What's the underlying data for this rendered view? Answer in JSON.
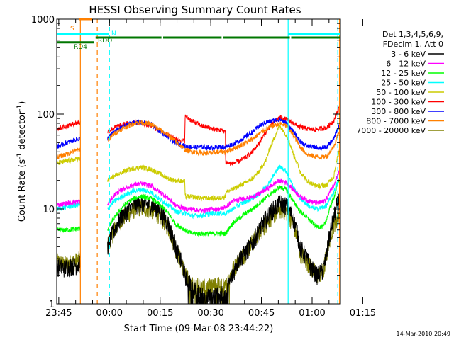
{
  "chart_data": {
    "type": "line",
    "title": "HESSI Observing Summary Count Rates",
    "xlabel": "Start Time (09-Mar-08 23:44:22)",
    "ylabel_main": "Count Rate (s",
    "ylabel_sup1": "-1",
    "ylabel_mid": " detector",
    "ylabel_sup2": "-1",
    "ylabel_end": ")",
    "y_scale": "log",
    "ylim": [
      1,
      1000
    ],
    "x_unit": "minutes since 23:44:22",
    "xlim": [
      0,
      84
    ],
    "x_ticks": [
      {
        "label": "23:45",
        "value": 0.6
      },
      {
        "label": "00:00",
        "value": 15.6
      },
      {
        "label": "00:15",
        "value": 30.6
      },
      {
        "label": "00:30",
        "value": 45.6
      },
      {
        "label": "00:45",
        "value": 60.6
      },
      {
        "label": "01:00",
        "value": 75.6
      },
      {
        "label": "01:15",
        "value": 90.6
      }
    ],
    "y_ticks": [
      {
        "label": "1",
        "value": 1
      },
      {
        "label": "10",
        "value": 10
      },
      {
        "label": "100",
        "value": 100
      },
      {
        "label": "1000",
        "value": 1000
      }
    ],
    "legend_header": [
      "Det 1,3,4,5,6,9,",
      "FDecim 1, Att 0"
    ],
    "legend_position": "right",
    "timestamp": "14-Mar-2010 20:49",
    "gaps": [
      [
        7,
        15
      ]
    ],
    "series": [
      {
        "name": "3 - 6 keV",
        "color": "#000000",
        "x": [
          0,
          2,
          4,
          6.5,
          15,
          17,
          20,
          23,
          25,
          28,
          30,
          33,
          35,
          38,
          40,
          43,
          46,
          48,
          50,
          52,
          54,
          56,
          58,
          60,
          63,
          66,
          68,
          70,
          72,
          75,
          77,
          79,
          80,
          82,
          84
        ],
        "y": [
          2.5,
          2.4,
          2.5,
          2.6,
          4,
          6,
          9,
          11,
          11.5,
          11,
          10,
          7,
          4,
          2,
          1.5,
          1.2,
          1.2,
          1.3,
          1.2,
          2,
          3,
          3.5,
          4.5,
          6,
          9,
          11.5,
          11,
          8,
          4,
          2.5,
          2,
          2.3,
          3.5,
          8,
          14
        ]
      },
      {
        "name": "6 - 12 keV",
        "color": "#ff00ff",
        "x": [
          0,
          3,
          6.5,
          15,
          17,
          20,
          23,
          25,
          28,
          30,
          33,
          35,
          38,
          40,
          43,
          46,
          48,
          50,
          52,
          54,
          56,
          58,
          60,
          63,
          66,
          68,
          70,
          72,
          75,
          77,
          79,
          80,
          82,
          84
        ],
        "y": [
          11,
          11.5,
          12,
          11,
          14,
          16.5,
          18,
          18.5,
          17.5,
          15.5,
          13,
          11,
          10,
          10,
          9.5,
          10,
          10,
          10.5,
          12,
          12.5,
          13,
          13.5,
          14.5,
          17,
          20,
          19,
          16,
          13.5,
          12,
          11.5,
          12,
          13,
          18,
          26
        ]
      },
      {
        "name": "12 - 25 keV",
        "color": "#00ff00",
        "x": [
          0,
          3,
          6.5,
          15,
          17,
          20,
          23,
          25,
          28,
          30,
          33,
          35,
          38,
          40,
          43,
          46,
          48,
          50,
          52,
          54,
          56,
          58,
          60,
          63,
          66,
          68,
          70,
          72,
          75,
          77,
          79,
          80,
          82,
          84
        ],
        "y": [
          6,
          6,
          6.2,
          6,
          8,
          11,
          13,
          13.5,
          13,
          11.5,
          9,
          7,
          6,
          5.5,
          5.5,
          5.5,
          5.5,
          5.5,
          7,
          8,
          9,
          10,
          11.5,
          14,
          17,
          16,
          12,
          9.5,
          7.5,
          6.5,
          6.5,
          8,
          13,
          22
        ]
      },
      {
        "name": "25 - 50 keV",
        "color": "#00ffff",
        "x": [
          0,
          3,
          6.5,
          15,
          17,
          20,
          23,
          25,
          28,
          30,
          33,
          35,
          38,
          40,
          43,
          46,
          48,
          50,
          52,
          54,
          56,
          58,
          60,
          63,
          66,
          68,
          70,
          72,
          75,
          77,
          79,
          80,
          82,
          84
        ],
        "y": [
          10,
          10.5,
          11,
          10,
          12,
          14,
          15.5,
          16,
          15,
          13,
          11,
          9.5,
          9,
          8.5,
          8.5,
          9,
          9,
          9,
          10,
          11,
          12,
          13,
          14.5,
          19,
          28,
          25,
          17,
          13,
          10.5,
          10,
          10.5,
          11,
          15,
          22
        ]
      },
      {
        "name": "50 - 100 keV",
        "color": "#cccc00",
        "x": [
          0,
          3,
          6.5,
          15,
          17,
          20,
          23,
          25,
          28,
          30,
          33,
          35,
          37.9,
          38,
          40,
          43,
          46,
          48,
          49.9,
          50,
          52,
          54,
          56,
          58,
          60,
          62,
          64,
          66,
          68,
          70,
          72,
          74,
          76,
          78,
          80,
          82,
          84
        ],
        "y": [
          30,
          32,
          34,
          20,
          22,
          25,
          27,
          27.5,
          26,
          24,
          21,
          20,
          19.5,
          13.5,
          13.5,
          13,
          13,
          13,
          13.5,
          15,
          16,
          17.5,
          19,
          21,
          25,
          33,
          52,
          75,
          60,
          38,
          25,
          20,
          18,
          17.5,
          18,
          22,
          45
        ]
      },
      {
        "name": "100 - 300 keV",
        "color": "#ff0000",
        "x": [
          0,
          3,
          6.5,
          15,
          17,
          20,
          23,
          25,
          28,
          30,
          33,
          35,
          37.9,
          38,
          40,
          43,
          46,
          48,
          49.9,
          50,
          52,
          54,
          56,
          58,
          60,
          62,
          64,
          66,
          68,
          70,
          72,
          74,
          76,
          78,
          80,
          82,
          84
        ],
        "y": [
          70,
          75,
          82,
          65,
          72,
          78,
          82,
          80,
          75,
          68,
          60,
          55,
          52,
          95,
          85,
          75,
          70,
          68,
          66,
          31,
          30,
          32,
          35,
          40,
          50,
          65,
          80,
          92,
          88,
          80,
          73,
          70,
          69,
          70,
          72,
          85,
          125
        ]
      },
      {
        "name": "300 - 800 keV",
        "color": "#0000ff",
        "x": [
          0,
          3,
          6.5,
          15,
          17,
          20,
          23,
          25,
          28,
          30,
          33,
          35,
          38,
          40,
          43,
          46,
          48,
          50,
          52,
          54,
          56,
          58,
          60,
          62,
          64,
          66,
          68,
          70,
          72,
          74,
          76,
          78,
          80,
          82,
          84
        ],
        "y": [
          45,
          50,
          55,
          55,
          65,
          75,
          82,
          82,
          78,
          68,
          57,
          50,
          46,
          45,
          45,
          44,
          45,
          45,
          48,
          52,
          58,
          65,
          75,
          82,
          85,
          88,
          80,
          65,
          52,
          46,
          45,
          44,
          45,
          55,
          80
        ]
      },
      {
        "name": "800 - 7000 keV",
        "color": "#ff8000",
        "x": [
          0,
          3,
          6.5,
          15,
          17,
          20,
          23,
          25,
          28,
          30,
          33,
          35,
          38,
          40,
          43,
          46,
          48,
          50,
          52,
          54,
          56,
          58,
          60,
          62,
          64,
          66,
          68,
          70,
          72,
          74,
          76,
          78,
          80,
          82,
          84
        ],
        "y": [
          35,
          38,
          42,
          52,
          62,
          72,
          80,
          82,
          78,
          70,
          60,
          52,
          42,
          40,
          39,
          39,
          40,
          40,
          43,
          46,
          50,
          55,
          62,
          70,
          75,
          80,
          75,
          60,
          45,
          38,
          36,
          35,
          36,
          45,
          70
        ]
      },
      {
        "name": "7000 - 20000 keV",
        "color": "#808000",
        "x": [
          0,
          2,
          4,
          6.5,
          15,
          17,
          20,
          23,
          25,
          28,
          30,
          33,
          35,
          38,
          40,
          43,
          46,
          48,
          50,
          52,
          54,
          56,
          58,
          60,
          63,
          66,
          68,
          70,
          72,
          75,
          77,
          79,
          80,
          82,
          84
        ],
        "y": [
          2.8,
          2.6,
          2.7,
          2.9,
          4,
          6,
          8.5,
          10,
          10.5,
          10,
          9,
          6.5,
          4,
          2,
          1.6,
          1.5,
          1.5,
          1.6,
          1.5,
          2.2,
          3,
          3.5,
          4.5,
          5.5,
          8,
          10,
          9.5,
          7,
          3.5,
          2.5,
          2,
          2.2,
          3.5,
          7,
          9
        ]
      }
    ],
    "bands": [
      {
        "label": "S",
        "color": "#ff8000",
        "level": 1000,
        "segments": [
          [
            6.5,
            10.5
          ]
        ]
      },
      {
        "label": "N",
        "color": "#00ffff",
        "level": 700,
        "segments": [
          [
            0,
            15.5
          ],
          [
            68.5,
            84
          ]
        ]
      },
      {
        "label": "RDO",
        "color": "#007700",
        "level": 640,
        "segments": [
          [
            11.5,
            31
          ],
          [
            31.5,
            48.8
          ],
          [
            49.3,
            69
          ],
          [
            69.4,
            84
          ]
        ]
      },
      {
        "label": "RD4",
        "color": "#007700",
        "level": 570,
        "segments": [
          [
            0,
            11
          ]
        ]
      }
    ],
    "vertical_markers": [
      {
        "x": 7,
        "color": "#ff8000",
        "style": "solid"
      },
      {
        "x": 12,
        "color": "#ff8000",
        "style": "dashed"
      },
      {
        "x": 15.6,
        "color": "#00ffff",
        "style": "dashed"
      },
      {
        "x": 68.5,
        "color": "#00ffff",
        "style": "solid"
      },
      {
        "x": 83.7,
        "color": "#ff8000",
        "style": "solid"
      },
      {
        "x": 83.2,
        "color": "#00ffff",
        "style": "dashed"
      }
    ]
  }
}
